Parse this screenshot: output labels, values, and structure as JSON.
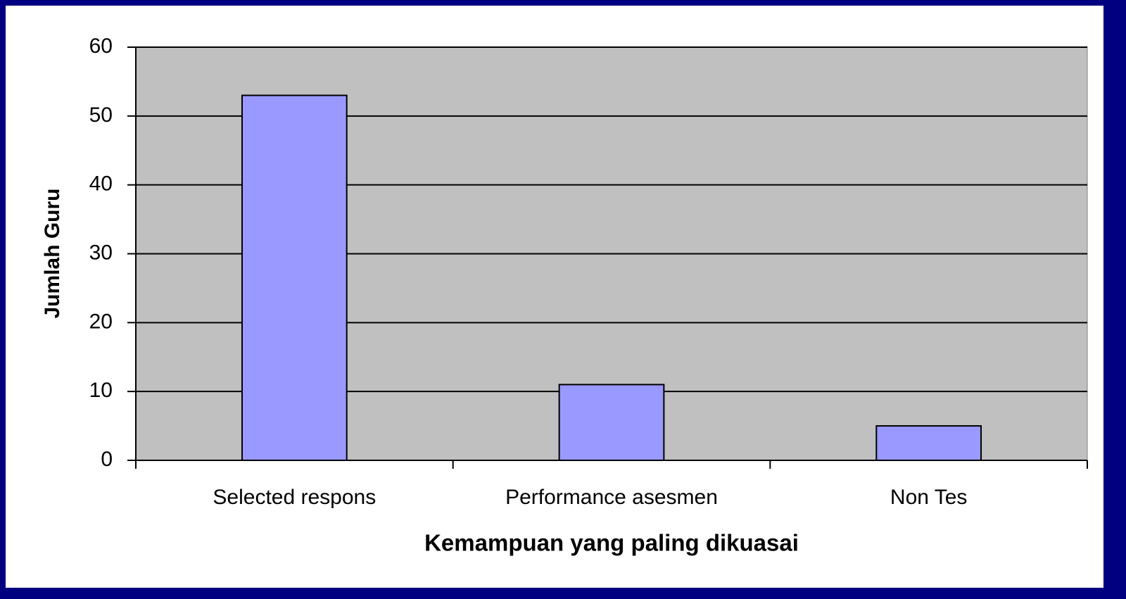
{
  "chart_data": {
    "type": "bar",
    "categories": [
      "Selected respons",
      "Performance asesmen",
      "Non Tes"
    ],
    "values": [
      53,
      11,
      5
    ],
    "color": "#9999ff",
    "ylim": [
      0,
      60
    ],
    "yticks": [
      0,
      10,
      20,
      30,
      40,
      50,
      60
    ],
    "grid": true,
    "xlabel": "Kemampuan yang paling dikuasai",
    "ylabel": "Jumlah Guru"
  }
}
